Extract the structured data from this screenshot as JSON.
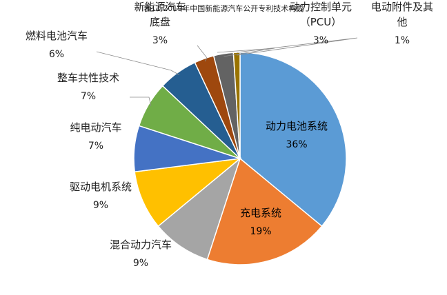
{
  "chart_data": {
    "type": "pie",
    "title": "表11 2019年中国新能源汽车公开专利技术构成",
    "slices": [
      {
        "label": "动力电池系统",
        "value": 36,
        "value_label": "36%",
        "color": "#5b9bd5"
      },
      {
        "label": "充电系统",
        "value": 19,
        "value_label": "19%",
        "color": "#ed7d31"
      },
      {
        "label": "混合动力汽车",
        "value": 9,
        "value_label": "9%",
        "color": "#a5a5a5"
      },
      {
        "label": "驱动电机系统",
        "value": 9,
        "value_label": "9%",
        "color": "#ffc000"
      },
      {
        "label": "纯电动汽车",
        "value": 7,
        "value_label": "7%",
        "color": "#4472c4"
      },
      {
        "label": "整车共性技术",
        "value": 7,
        "value_label": "7%",
        "color": "#70ad47"
      },
      {
        "label": "燃料电池汽车",
        "value": 6,
        "value_label": "6%",
        "color": "#255e91"
      },
      {
        "label": "新能源汽车底盘",
        "label_lines": [
          "新能源汽车",
          "底盘"
        ],
        "value": 3,
        "value_label": "3%",
        "color": "#9e480e"
      },
      {
        "label": "动力控制单元（PCU）",
        "label_lines": [
          "动力控制单元",
          "（PCU）"
        ],
        "value": 3,
        "value_label": "3%",
        "color": "#636363"
      },
      {
        "label": "电动附件及其他",
        "label_lines": [
          "电动附件及其",
          "他"
        ],
        "value": 1,
        "value_label": "1%",
        "color": "#997300"
      }
    ],
    "start_angle_deg": 0,
    "direction": "clockwise",
    "legend": "none"
  }
}
